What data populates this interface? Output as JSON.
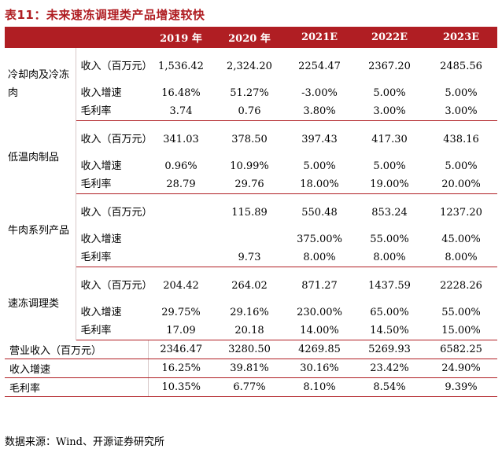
{
  "title": "表11：未来速冻调理类产品增速较快",
  "headers": [
    "2019 年",
    "2020 年",
    "2021E",
    "2022E",
    "2023E"
  ],
  "groups": [
    {
      "name": "冷却肉及冷冻肉",
      "rows": [
        {
          "metric": "收入（百万元）",
          "values": [
            "1,536.42",
            "2,324.20",
            "2254.47",
            "2367.20",
            "2485.56"
          ]
        },
        {
          "metric": "收入增速",
          "values": [
            "16.48%",
            "51.27%",
            "-3.00%",
            "5.00%",
            "5.00%"
          ]
        },
        {
          "metric": "毛利率",
          "values": [
            "3.74",
            "0.76",
            "3.80%",
            "3.00%",
            "3.00%"
          ]
        }
      ]
    },
    {
      "name": "低温肉制品",
      "rows": [
        {
          "metric": "收入（百万元）",
          "values": [
            "341.03",
            "378.50",
            "397.43",
            "417.30",
            "438.16"
          ]
        },
        {
          "metric": "收入增速",
          "values": [
            "0.96%",
            "10.99%",
            "5.00%",
            "5.00%",
            "5.00%"
          ]
        },
        {
          "metric": "毛利率",
          "values": [
            "28.79",
            "29.76",
            "18.00%",
            "19.00%",
            "20.00%"
          ]
        }
      ]
    },
    {
      "name": "牛肉系列产品",
      "rows": [
        {
          "metric": "收入（百万元）",
          "values": [
            "",
            "115.89",
            "550.48",
            "853.24",
            "1237.20"
          ]
        },
        {
          "metric": "收入增速",
          "values": [
            "",
            "",
            "375.00%",
            "55.00%",
            "45.00%"
          ]
        },
        {
          "metric": "毛利率",
          "values": [
            "",
            "9.73",
            "8.00%",
            "8.00%",
            "8.00%"
          ]
        }
      ]
    },
    {
      "name": "速冻调理类",
      "rows": [
        {
          "metric": "收入（百万元）",
          "values": [
            "204.42",
            "264.02",
            "871.27",
            "1437.59",
            "2228.26"
          ]
        },
        {
          "metric": "收入增速",
          "values": [
            "29.75%",
            "29.16%",
            "230.00%",
            "65.00%",
            "55.00%"
          ]
        },
        {
          "metric": "毛利率",
          "values": [
            "17.09",
            "20.18",
            "14.00%",
            "14.50%",
            "15.00%"
          ]
        }
      ]
    }
  ],
  "totals": [
    {
      "label": "营业收入（百万元）",
      "values": [
        "2346.47",
        "3280.50",
        "4269.85",
        "5269.93",
        "6582.25"
      ]
    },
    {
      "label": "收入增速",
      "values": [
        "16.25%",
        "39.81%",
        "30.16%",
        "23.42%",
        "24.90%"
      ]
    },
    {
      "label": "毛利率",
      "values": [
        "10.35%",
        "6.77%",
        "8.10%",
        "8.54%",
        "9.39%"
      ]
    }
  ],
  "source": "数据来源：Wind、开源证券研究所"
}
